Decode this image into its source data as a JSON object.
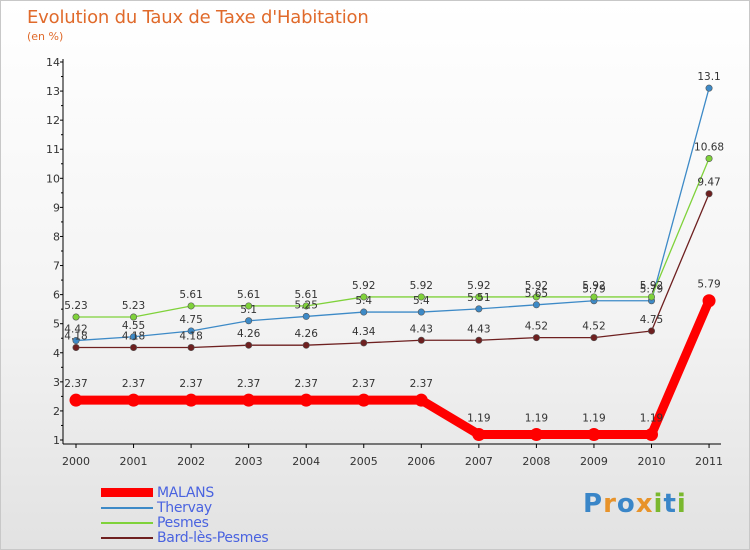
{
  "title": "Evolution du Taux de Taxe d'Habitation",
  "subtitle": "(en %)",
  "logo": {
    "text": "Proxiti",
    "letters": [
      "P",
      "r",
      "o",
      "x",
      "i",
      "t",
      "i"
    ],
    "colors": [
      "#3a86c8",
      "#e8932a",
      "#3a86c8",
      "#e8932a",
      "#7ab82e",
      "#3a86c8",
      "#7ab82e"
    ]
  },
  "chart_data": {
    "type": "line",
    "title": "Evolution du Taux de Taxe d'Habitation",
    "ylabel": "(en %)",
    "xlabel": "",
    "ylim": [
      1,
      14
    ],
    "x": [
      "2000",
      "2001",
      "2002",
      "2003",
      "2004",
      "2005",
      "2006",
      "2007",
      "2008",
      "2009",
      "2010",
      "2011"
    ],
    "yticks": [
      "1",
      "2",
      "3",
      "4",
      "5",
      "6",
      "7",
      "8",
      "9",
      "10",
      "11",
      "12",
      "13",
      "14"
    ],
    "series": [
      {
        "name": "MALANS",
        "color": "#ff0000",
        "thick": true,
        "values": [
          2.37,
          2.37,
          2.37,
          2.37,
          2.37,
          2.37,
          2.37,
          1.19,
          1.19,
          1.19,
          1.19,
          5.79
        ],
        "labels": [
          "2.37",
          "2.37",
          "2.37",
          "2.37",
          "2.37",
          "2.37",
          "2.37",
          "1.19",
          "1.19",
          "1.19",
          "1.19",
          "5.79"
        ]
      },
      {
        "name": "Thervay",
        "color": "#3d8ac7",
        "thick": false,
        "values": [
          4.42,
          4.55,
          4.75,
          5.1,
          5.25,
          5.4,
          5.4,
          5.51,
          5.65,
          5.79,
          5.79,
          13.1
        ],
        "labels": [
          "4.42",
          "4.55",
          "4.75",
          "5.1",
          "5.25",
          "5.4",
          "5.4",
          "5.51",
          "5.65",
          "5.79",
          "5.79",
          "13.1"
        ]
      },
      {
        "name": "Pesmes",
        "color": "#7fd23a",
        "thick": false,
        "values": [
          5.23,
          5.23,
          5.61,
          5.61,
          5.61,
          5.92,
          5.92,
          5.92,
          5.92,
          5.92,
          5.92,
          10.68
        ],
        "labels": [
          "5.23",
          "5.23",
          "5.61",
          "5.61",
          "5.61",
          "5.92",
          "5.92",
          "5.92",
          "5.92",
          "5.92",
          "5.92",
          "10.68"
        ]
      },
      {
        "name": "Bard-lès-Pesmes",
        "color": "#6e2020",
        "thick": false,
        "values": [
          4.18,
          4.18,
          4.18,
          4.26,
          4.26,
          4.34,
          4.43,
          4.43,
          4.52,
          4.52,
          4.75,
          9.47
        ],
        "labels": [
          "4.18",
          "4.18",
          "4.18",
          "4.26",
          "4.26",
          "4.34",
          "4.43",
          "4.43",
          "4.52",
          "4.52",
          "4.75",
          "9.47"
        ]
      }
    ]
  }
}
